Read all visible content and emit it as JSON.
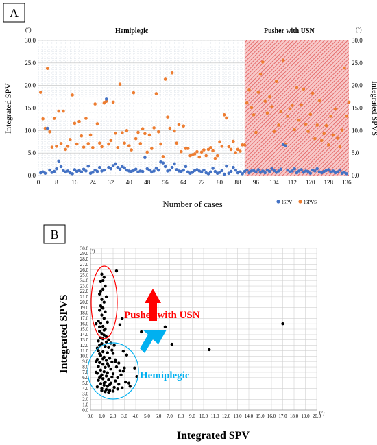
{
  "chart_data": [
    {
      "panel_label": "A",
      "type": "scatter",
      "section_labels": [
        "Hemiplegic",
        "Pusher with USN"
      ],
      "ylabel_left": "Integrated SPV",
      "ylabel_right": "Integrated SPVS",
      "xlabel": "Number of cases",
      "unit_marker": "(°)",
      "xlim": [
        0,
        137
      ],
      "ylim": [
        0,
        30
      ],
      "x_ticks": [
        "0",
        "8",
        "16",
        "24",
        "32",
        "40",
        "48",
        "56",
        "64",
        "72",
        "80",
        "88",
        "96",
        "104",
        "112",
        "120",
        "128",
        "136"
      ],
      "y_ticks": [
        "0.0",
        "5.0",
        "10.0",
        "15.0",
        "20.0",
        "25.0",
        "30.0"
      ],
      "grid": true,
      "legend_position": "bottom-right",
      "shaded_region": {
        "x_from": 91,
        "x_to": 137,
        "label": "Pusher with USN"
      },
      "series": [
        {
          "name": "ISPV",
          "color": "#4472c4",
          "values": [
            0.6,
            0.8,
            0.5,
            10.5,
            1.2,
            0.7,
            0.9,
            1.5,
            3.2,
            2.0,
            1.1,
            0.8,
            1.0,
            0.6,
            0.4,
            1.3,
            0.9,
            1.1,
            0.8,
            1.4,
            1.0,
            2.1,
            0.5,
            0.7,
            1.2,
            0.9,
            1.8,
            1.0,
            1.2,
            17.0,
            1.8,
            1.5,
            2.2,
            2.6,
            1.8,
            1.4,
            2.0,
            1.7,
            1.2,
            1.0,
            0.9,
            1.1,
            1.4,
            0.8,
            1.0,
            0.9,
            4.0,
            1.5,
            1.2,
            0.8,
            1.0,
            1.6,
            1.2,
            3.0,
            2.8,
            2.0,
            1.0,
            1.2,
            1.8,
            2.6,
            1.3,
            1.0,
            0.9,
            1.2,
            2.0,
            0.8,
            0.5,
            0.7,
            1.1,
            1.3,
            1.0,
            0.8,
            1.2,
            0.6,
            0.4,
            0.8,
            1.6,
            0.9,
            0.5,
            0.7,
            1.1,
            0.3,
            2.1,
            0.5,
            0.9,
            1.8,
            1.2,
            0.6,
            0.8,
            0.4,
            0.9,
            1.2,
            0.6,
            1.0,
            1.1,
            0.8,
            1.3,
            0.7,
            1.0,
            0.6,
            1.2,
            0.9,
            1.5,
            1.1,
            0.7,
            1.0,
            1.4,
            6.9,
            6.6,
            1.2,
            0.8,
            1.0,
            1.5,
            0.6,
            1.0,
            1.3,
            0.7,
            1.0,
            0.9,
            0.5,
            1.2,
            1.0,
            1.5,
            0.8,
            0.6,
            0.9,
            1.1,
            1.3,
            0.8,
            1.0,
            0.6,
            0.8,
            1.2,
            0.5,
            0.7,
            0.4
          ]
        },
        {
          "name": "ISPVS",
          "color": "#ed7d31",
          "values": [
            18.5,
            12.6,
            10.5,
            23.8,
            9.7,
            6.3,
            12.7,
            6.5,
            14.3,
            7.1,
            14.3,
            5.8,
            6.5,
            8.0,
            17.9,
            11.6,
            7.0,
            12.0,
            8.8,
            6.3,
            12.7,
            7.1,
            9.0,
            6.2,
            15.9,
            11.5,
            7.2,
            6.4,
            16.1,
            16.5,
            7.0,
            7.8,
            16.3,
            9.4,
            6.2,
            20.3,
            9.5,
            7.2,
            10.0,
            6.6,
            5.7,
            18.4,
            8.2,
            9.6,
            7.1,
            10.4,
            9.3,
            5.2,
            9.0,
            6.0,
            10.6,
            18.2,
            9.7,
            7.0,
            4.2,
            21.4,
            13.0,
            10.5,
            22.8,
            9.9,
            7.2,
            11.3,
            5.3,
            11.0,
            6.0,
            6.0,
            4.4,
            4.6,
            4.8,
            5.3,
            4.1,
            5.2,
            5.7,
            4.4,
            5.8,
            6.2,
            5.5,
            3.8,
            4.4,
            7.5,
            6.5,
            13.5,
            12.8,
            6.4,
            5.8,
            7.6,
            5.1,
            5.8,
            5.4,
            6.8,
            6.8,
            16.1,
            19.0,
            15.1,
            13.5,
            9.6,
            18.5,
            22.5,
            25.2,
            16.5,
            13.9,
            17.5,
            15.3,
            9.8,
            20.9,
            11.2,
            14.2,
            25.6,
            6.9,
            13.2,
            14.8,
            15.6,
            10.2,
            19.5,
            12.3,
            15.7,
            19.2,
            11.3,
            9.8,
            13.6,
            18.3,
            8.2,
            11.2,
            16.6,
            7.8,
            9.3,
            11.1,
            6.8,
            13.2,
            9.0,
            14.8,
            8.3,
            6.4,
            10.1,
            23.9,
            13.2,
            16.3
          ]
        }
      ]
    },
    {
      "panel_label": "B",
      "type": "scatter",
      "xlabel": "Integrated SPV",
      "ylabel": "Integrated SPVS",
      "unit_marker": "(°)",
      "xlim": [
        0,
        20
      ],
      "ylim": [
        0,
        30
      ],
      "x_ticks": [
        "0.0",
        "1.0",
        "2.0",
        "3.0",
        "4.0",
        "5.0",
        "6.0",
        "7.0",
        "8.0",
        "9.0",
        "10.0",
        "11.0",
        "12.0",
        "13.0",
        "14.0",
        "15.0",
        "16.0",
        "17.0",
        "18.0",
        "19.0",
        "20.0"
      ],
      "y_ticks": [
        "0.0",
        "1.0",
        "2.0",
        "3.0",
        "4.0",
        "5.0",
        "6.0",
        "7.0",
        "8.0",
        "9.0",
        "10.0",
        "11.0",
        "12.0",
        "13.0",
        "14.0",
        "15.0",
        "16.0",
        "17.0",
        "18.0",
        "19.0",
        "20.0",
        "21.0",
        "22.0",
        "23.0",
        "24.0",
        "25.0",
        "26.0",
        "27.0",
        "28.0",
        "29.0",
        "30.0"
      ],
      "grid": true,
      "annotations": [
        {
          "text": "Pusher with USN",
          "color": "#ff0000"
        },
        {
          "text": "Hemiplegic",
          "color": "#00b0f0"
        }
      ],
      "series": [
        {
          "name": "",
          "color": "#000000",
          "points": [
            [
              1.0,
              25.2
            ],
            [
              1.2,
              24.6
            ],
            [
              0.9,
              23.8
            ],
            [
              1.3,
              23.0
            ],
            [
              1.1,
              22.4
            ],
            [
              0.8,
              21.5
            ],
            [
              1.4,
              21.0
            ],
            [
              1.0,
              20.5
            ],
            [
              1.2,
              20.0
            ],
            [
              0.9,
              19.3
            ],
            [
              1.1,
              18.9
            ],
            [
              0.8,
              18.5
            ],
            [
              1.3,
              18.2
            ],
            [
              1.0,
              17.6
            ],
            [
              1.2,
              17.0
            ],
            [
              0.7,
              16.5
            ],
            [
              1.5,
              16.3
            ],
            [
              0.9,
              16.1
            ],
            [
              1.1,
              15.5
            ],
            [
              1.3,
              15.0
            ],
            [
              0.8,
              14.6
            ],
            [
              1.0,
              14.2
            ],
            [
              1.2,
              13.9
            ],
            [
              1.4,
              13.6
            ],
            [
              0.9,
              13.4
            ],
            [
              1.1,
              13.2
            ],
            [
              1.6,
              13.0
            ],
            [
              2.6,
              15.8
            ],
            [
              2.3,
              25.8
            ],
            [
              2.8,
              17.0
            ],
            [
              4.5,
              14.5
            ],
            [
              6.6,
              15.4
            ],
            [
              7.2,
              12.2
            ],
            [
              10.5,
              11.2
            ],
            [
              17.0,
              16.0
            ],
            [
              0.5,
              16.0
            ],
            [
              0.6,
              11.5
            ],
            [
              0.8,
              12.0
            ],
            [
              1.0,
              12.3
            ],
            [
              1.3,
              11.8
            ],
            [
              1.6,
              11.6
            ],
            [
              1.8,
              12.4
            ],
            [
              2.1,
              12.0
            ],
            [
              0.7,
              11.0
            ],
            [
              1.1,
              10.8
            ],
            [
              1.5,
              10.6
            ],
            [
              2.0,
              10.5
            ],
            [
              2.9,
              10.9
            ],
            [
              3.2,
              10.2
            ],
            [
              0.9,
              10.1
            ],
            [
              1.2,
              9.8
            ],
            [
              1.7,
              9.6
            ],
            [
              2.2,
              9.3
            ],
            [
              0.6,
              9.4
            ],
            [
              1.4,
              9.2
            ],
            [
              1.9,
              8.9
            ],
            [
              2.5,
              8.7
            ],
            [
              0.8,
              8.8
            ],
            [
              1.1,
              8.5
            ],
            [
              1.6,
              8.2
            ],
            [
              2.3,
              8.0
            ],
            [
              3.0,
              7.8
            ],
            [
              0.7,
              8.1
            ],
            [
              1.3,
              7.9
            ],
            [
              1.8,
              7.6
            ],
            [
              2.6,
              7.3
            ],
            [
              3.9,
              7.8
            ],
            [
              0.9,
              7.4
            ],
            [
              1.2,
              7.1
            ],
            [
              1.5,
              6.9
            ],
            [
              2.0,
              6.7
            ],
            [
              2.7,
              6.5
            ],
            [
              0.6,
              6.8
            ],
            [
              1.0,
              6.5
            ],
            [
              1.4,
              6.3
            ],
            [
              1.9,
              6.1
            ],
            [
              2.4,
              6.0
            ],
            [
              0.8,
              6.0
            ],
            [
              1.1,
              5.8
            ],
            [
              1.6,
              5.6
            ],
            [
              2.2,
              5.4
            ],
            [
              3.1,
              5.2
            ],
            [
              0.7,
              5.5
            ],
            [
              1.3,
              5.2
            ],
            [
              1.8,
              5.0
            ],
            [
              2.5,
              4.8
            ],
            [
              0.9,
              4.9
            ],
            [
              1.2,
              4.6
            ],
            [
              1.5,
              4.4
            ],
            [
              2.1,
              4.2
            ],
            [
              0.6,
              4.3
            ],
            [
              1.0,
              4.0
            ],
            [
              1.4,
              3.8
            ],
            [
              1.7,
              3.6
            ],
            [
              3.5,
              4.4
            ],
            [
              3.4,
              5.0
            ],
            [
              4.1,
              6.2
            ],
            [
              2.8,
              4.1
            ],
            [
              0.5,
              7.0
            ],
            [
              0.5,
              9.0
            ],
            [
              1.0,
              3.6
            ],
            [
              1.3,
              3.4
            ],
            [
              1.6,
              3.3
            ],
            [
              2.0,
              3.5
            ],
            [
              2.4,
              3.9
            ],
            [
              0.8,
              10.4
            ],
            [
              1.1,
              9.5
            ],
            [
              1.5,
              8.6
            ],
            [
              0.9,
              6.2
            ],
            [
              1.2,
              5.0
            ],
            [
              1.7,
              4.7
            ],
            [
              2.9,
              7.2
            ],
            [
              2.2,
              9.0
            ],
            [
              1.9,
              11.1
            ],
            [
              0.7,
              12.8
            ],
            [
              1.4,
              12.6
            ],
            [
              0.8,
              15.4
            ],
            [
              1.2,
              14.8
            ],
            [
              1.0,
              19.0
            ],
            [
              0.9,
              22.0
            ],
            [
              1.1,
              24.0
            ]
          ]
        }
      ]
    }
  ]
}
